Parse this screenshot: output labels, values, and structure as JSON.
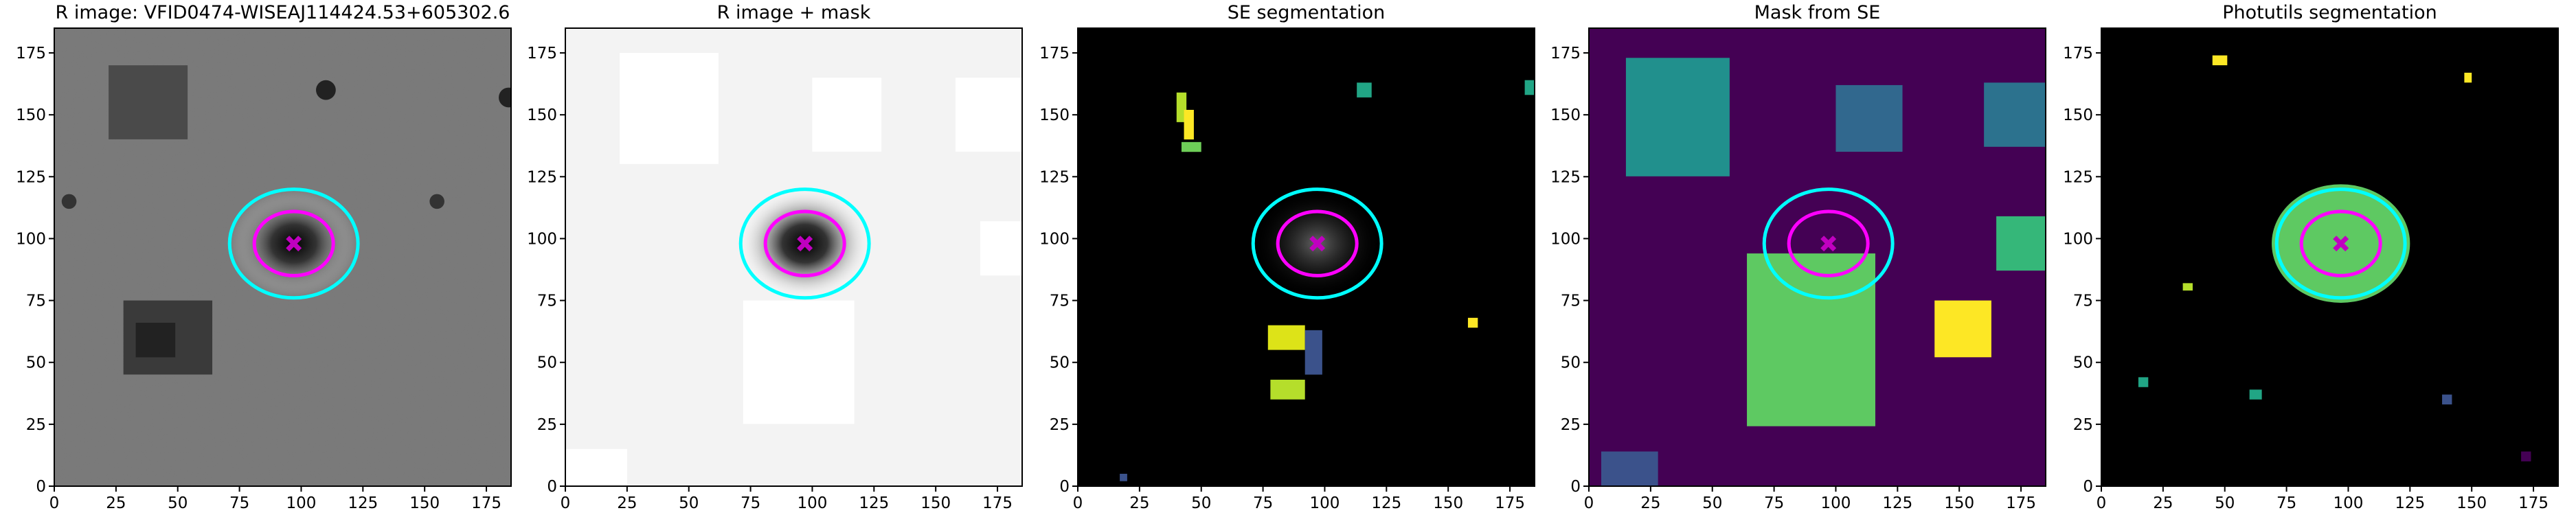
{
  "chart_data": [
    {
      "type": "image",
      "title": "R image: VFID0474-WISEAJ114424.53+605302.6",
      "xlim": [
        0,
        185
      ],
      "ylim": [
        0,
        185
      ],
      "xticks": [
        0,
        25,
        50,
        75,
        100,
        125,
        150,
        175
      ],
      "yticks": [
        0,
        25,
        50,
        75,
        100,
        125,
        150,
        175
      ]
    },
    {
      "type": "image",
      "title": "R image + mask",
      "xlim": [
        0,
        185
      ],
      "ylim": [
        0,
        185
      ],
      "xticks": [
        0,
        25,
        50,
        75,
        100,
        125,
        150,
        175
      ],
      "yticks": [
        0,
        25,
        50,
        75,
        100,
        125,
        150,
        175
      ]
    },
    {
      "type": "image",
      "title": "SE segmentation",
      "xlim": [
        0,
        185
      ],
      "ylim": [
        0,
        185
      ],
      "xticks": [
        0,
        25,
        50,
        75,
        100,
        125,
        150,
        175
      ],
      "yticks": [
        0,
        25,
        50,
        75,
        100,
        125,
        150,
        175
      ]
    },
    {
      "type": "image",
      "title": "Mask from SE",
      "xlim": [
        0,
        185
      ],
      "ylim": [
        0,
        185
      ],
      "xticks": [
        0,
        25,
        50,
        75,
        100,
        125,
        150,
        175
      ],
      "yticks": [
        0,
        25,
        50,
        75,
        100,
        125,
        150,
        175
      ]
    },
    {
      "type": "image",
      "title": "Photutils segmentation",
      "xlim": [
        0,
        185
      ],
      "ylim": [
        0,
        185
      ],
      "xticks": [
        0,
        25,
        50,
        75,
        100,
        125,
        150,
        175
      ],
      "yticks": [
        0,
        25,
        50,
        75,
        100,
        125,
        150,
        175
      ]
    }
  ]
}
